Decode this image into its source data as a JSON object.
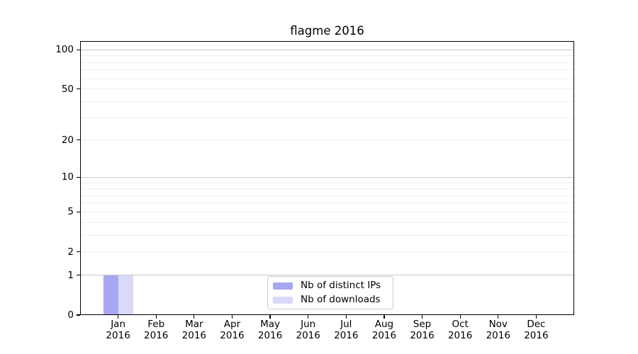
{
  "chart_data": {
    "type": "bar",
    "title": "flagme 2016",
    "categories": [
      "Jan 2016",
      "Feb 2016",
      "Mar 2016",
      "Apr 2016",
      "May 2016",
      "Jun 2016",
      "Jul 2016",
      "Aug 2016",
      "Sep 2016",
      "Oct 2016",
      "Nov 2016",
      "Dec 2016"
    ],
    "series": [
      {
        "name": "Nb of distinct IPs",
        "color": "#a7a7f1",
        "values": [
          1,
          0,
          0,
          0,
          0,
          0,
          0,
          0,
          0,
          0,
          0,
          0
        ]
      },
      {
        "name": "Nb of downloads",
        "color": "#dadaf8",
        "values": [
          1,
          0,
          0,
          0,
          0,
          0,
          0,
          0,
          0,
          0,
          0,
          0
        ]
      }
    ],
    "yscale": "log1p",
    "ylim": [
      0,
      116
    ],
    "ytick_labels": [
      "0",
      "1",
      "2",
      "5",
      "10",
      "20",
      "50",
      "100"
    ],
    "ytick_values": [
      0,
      1,
      2,
      5,
      10,
      20,
      50,
      100
    ],
    "major_gridline_values": [
      1,
      10,
      100
    ],
    "minor_gridline_values": [
      2,
      3,
      4,
      5,
      6,
      7,
      8,
      9,
      20,
      30,
      40,
      50,
      60,
      70,
      80,
      90
    ],
    "grid_on": true,
    "legend_position": "lower center",
    "colors": {
      "major_grid": "#c9c9c9",
      "minor_grid": "#efefef",
      "axis": "#000000",
      "legend_border": "#cccccc",
      "background": "#ffffff"
    }
  }
}
